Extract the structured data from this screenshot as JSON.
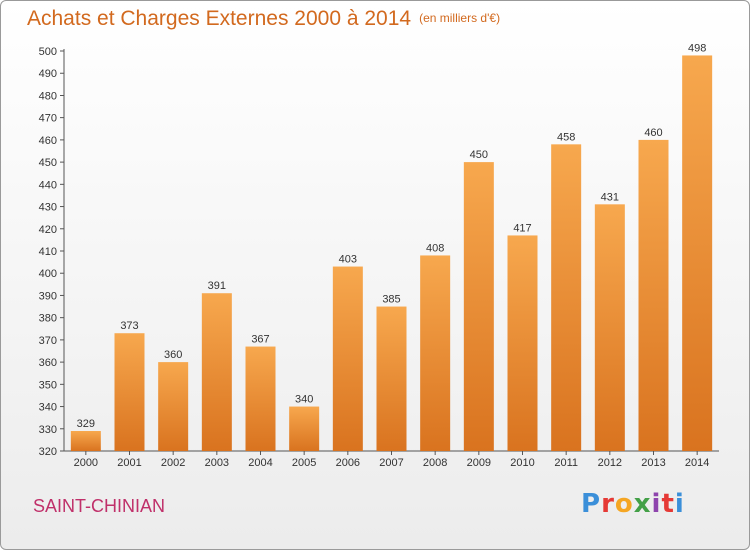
{
  "header": {
    "title": "Achats et Charges Externes 2000 à 2014",
    "subtitle": "(en milliers d'€)"
  },
  "footer": {
    "city": "SAINT-CHINIAN",
    "logo": "Proxiti",
    "logo_colors": [
      "#3b8fd9",
      "#e53935",
      "#f5a623",
      "#43a047",
      "#8e44ad",
      "#e53935",
      "#3b8fd9"
    ]
  },
  "colors": {
    "bar_light": "#f7a84e",
    "bar_dark": "#d9731f",
    "title": "#d2691e",
    "city": "#c0306a"
  },
  "chart_data": {
    "type": "bar",
    "title": "Achats et Charges Externes 2000 à 2014",
    "subtitle": "(en milliers d'€)",
    "categories": [
      "2000",
      "2001",
      "2002",
      "2003",
      "2004",
      "2005",
      "2006",
      "2007",
      "2008",
      "2009",
      "2010",
      "2011",
      "2012",
      "2013",
      "2014"
    ],
    "values": [
      329,
      373,
      360,
      391,
      367,
      340,
      403,
      385,
      408,
      450,
      417,
      458,
      431,
      460,
      498
    ],
    "ylim": [
      320,
      500
    ],
    "yticks": [
      320,
      330,
      340,
      350,
      360,
      370,
      380,
      390,
      400,
      410,
      420,
      430,
      440,
      450,
      460,
      470,
      480,
      490,
      500
    ],
    "grid": false,
    "data_labels": true
  }
}
